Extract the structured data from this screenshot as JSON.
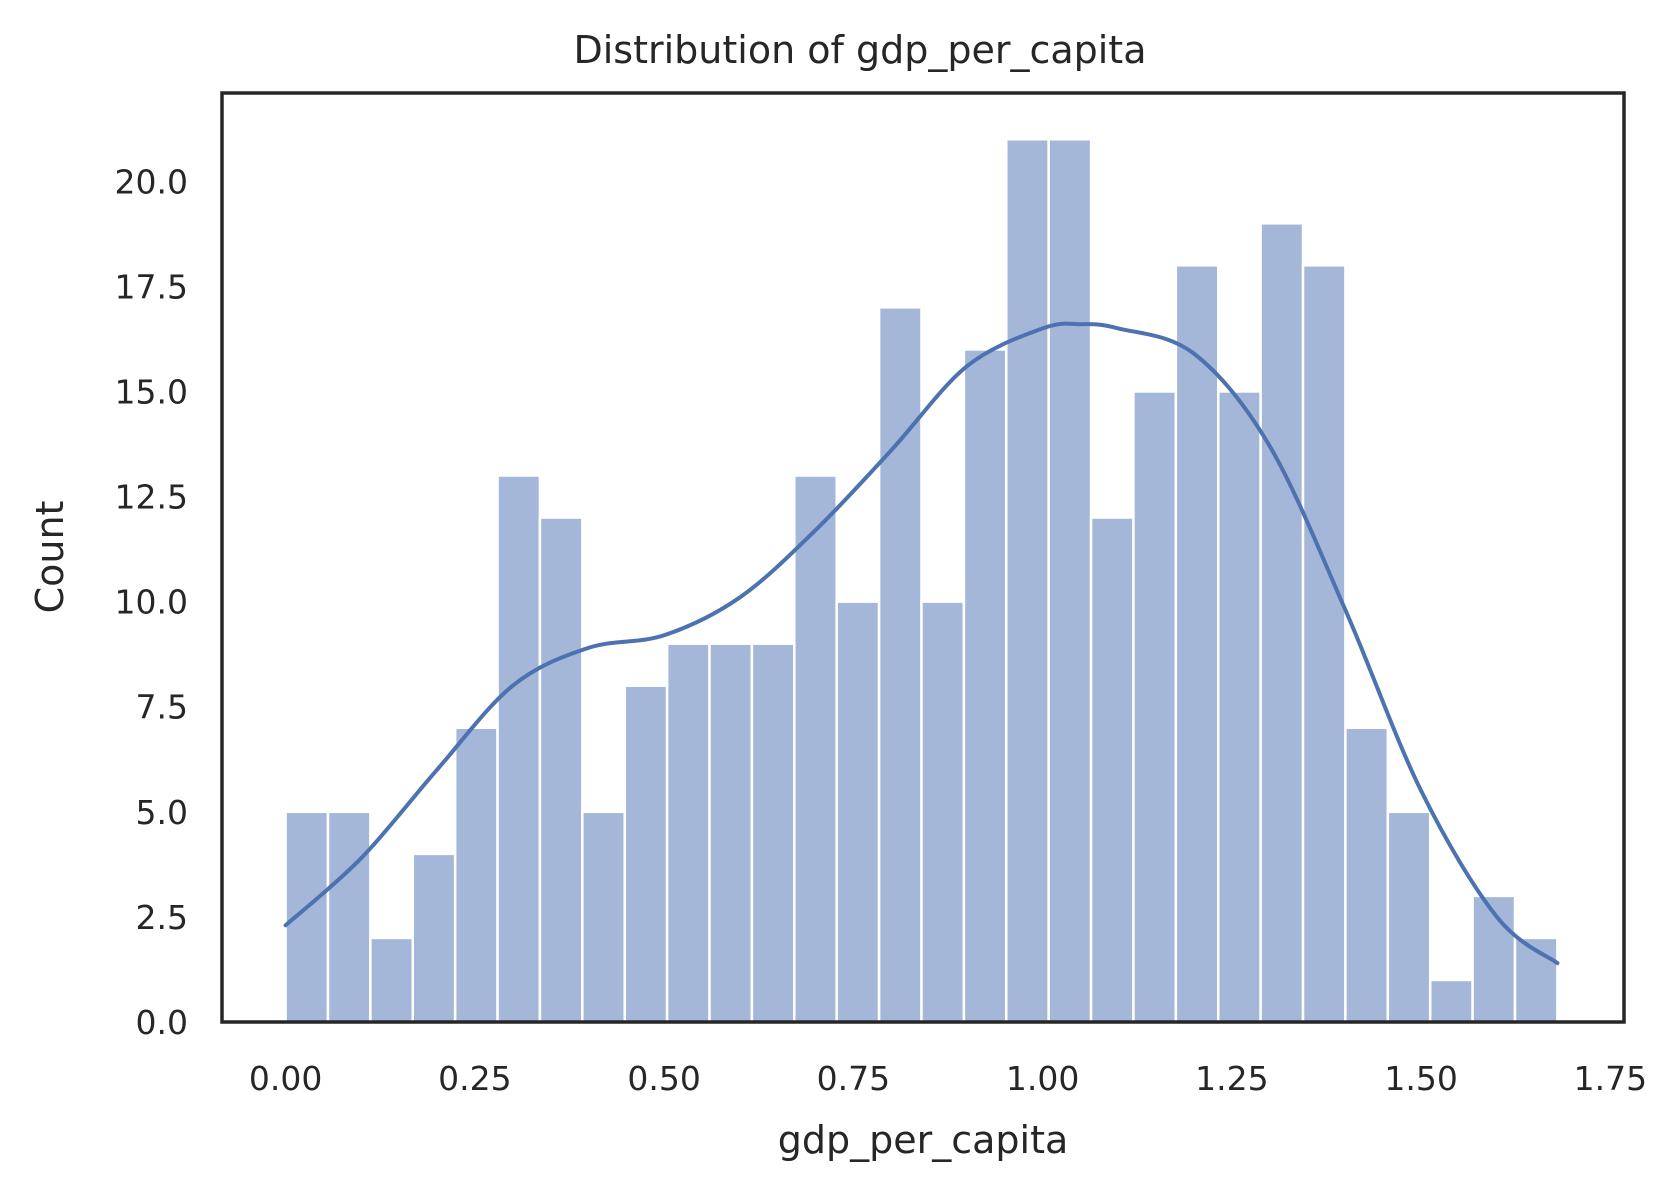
{
  "chart_data": {
    "type": "bar",
    "title": "Distribution of gdp_per_capita",
    "xlabel": "gdp_per_capita",
    "ylabel": "Count",
    "xlim": [
      -0.084,
      1.768
    ],
    "ylim": [
      0,
      22.1
    ],
    "xticks": [
      0,
      0.25,
      0.5,
      0.75,
      1.0,
      1.25,
      1.5,
      1.75
    ],
    "xtick_labels": [
      "0.00",
      "0.25",
      "0.50",
      "0.75",
      "1.00",
      "1.25",
      "1.50",
      "1.75"
    ],
    "yticks": [
      0,
      2.5,
      5,
      7.5,
      10,
      12.5,
      15,
      17.5,
      20
    ],
    "ytick_labels": [
      "0.0",
      "2.5",
      "5.0",
      "7.5",
      "10.0",
      "12.5",
      "15.0",
      "17.5",
      "20.0"
    ],
    "grid": false,
    "bin_start": 0.0,
    "bin_width": 0.056,
    "counts": [
      5,
      5,
      2,
      4,
      7,
      13,
      12,
      5,
      8,
      9,
      9,
      9,
      13,
      10,
      17,
      10,
      16,
      21,
      21,
      12,
      15,
      18,
      15,
      19,
      18,
      7,
      5,
      1,
      3,
      2
    ],
    "kde": {
      "x": [
        0.0,
        0.1,
        0.2,
        0.3,
        0.4,
        0.5,
        0.6,
        0.7,
        0.8,
        0.9,
        1.0,
        1.05,
        1.1,
        1.2,
        1.3,
        1.4,
        1.5,
        1.6,
        1.68
      ],
      "y": [
        2.3,
        3.9,
        6.0,
        8.0,
        8.9,
        9.2,
        10.1,
        11.7,
        13.6,
        15.6,
        16.5,
        16.6,
        16.5,
        15.9,
        13.7,
        9.8,
        5.5,
        2.5,
        1.4
      ]
    },
    "colors": {
      "bar": "#a5b7d8",
      "kde": "#4c72b0",
      "text": "#262626"
    }
  }
}
